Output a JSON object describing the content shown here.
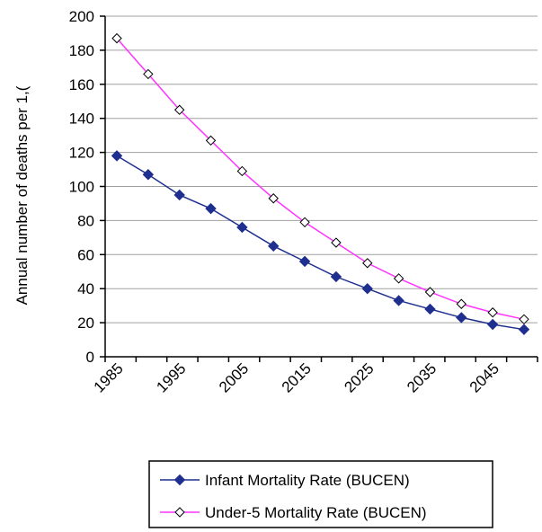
{
  "chart_data": {
    "type": "line",
    "title": "",
    "ylabel": "Annual number of deaths per 1,(",
    "xlabel": "",
    "x": [
      1985,
      1990,
      1995,
      2000,
      2005,
      2010,
      2015,
      2020,
      2025,
      2030,
      2035,
      2040,
      2045,
      2050
    ],
    "x_tick_labels": [
      "1985",
      "1995",
      "2005",
      "2015",
      "2025",
      "2035",
      "2045"
    ],
    "ylim": [
      0,
      200
    ],
    "y_ticks": [
      0,
      20,
      40,
      60,
      80,
      100,
      120,
      140,
      160,
      180,
      200
    ],
    "grid": "horizontal",
    "legend_position": "bottom",
    "series": [
      {
        "name": "Infant Mortality Rate (BUCEN)",
        "color": "#1f2f8f",
        "marker": "filled-diamond",
        "values": [
          118,
          107,
          95,
          87,
          76,
          65,
          56,
          47,
          40,
          33,
          28,
          23,
          19,
          16
        ]
      },
      {
        "name": "Under-5 Mortality Rate (BUCEN)",
        "color": "#ff33ff",
        "marker": "open-diamond",
        "values": [
          187,
          166,
          145,
          127,
          109,
          93,
          79,
          67,
          55,
          46,
          38,
          31,
          26,
          22
        ]
      }
    ]
  }
}
